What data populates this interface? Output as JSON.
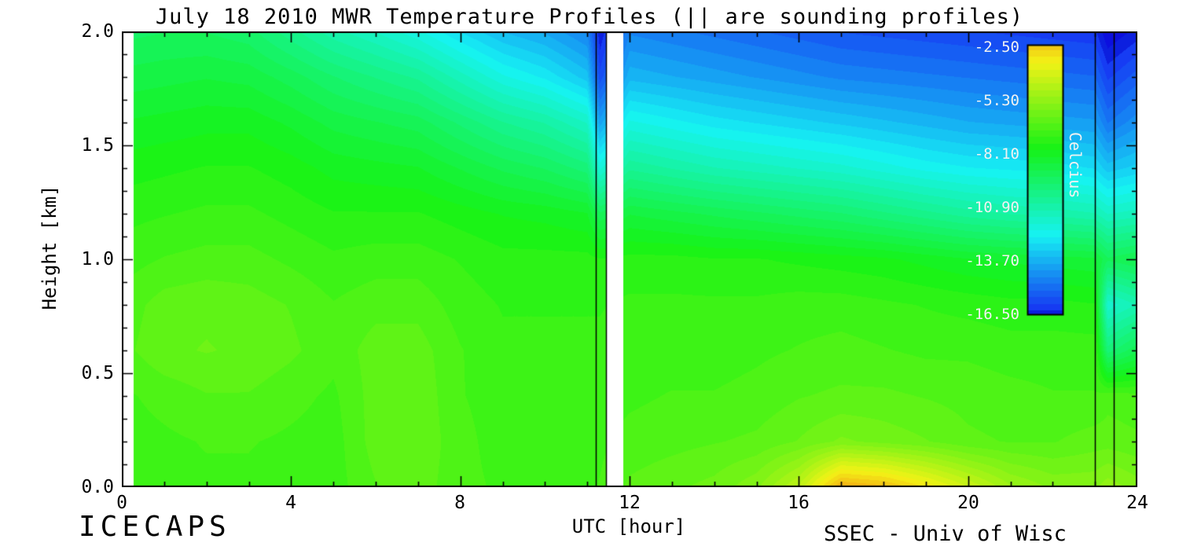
{
  "footer": {
    "left": "ICECAPS",
    "right": "SSEC - Univ of Wisc"
  },
  "chart_data": {
    "type": "heatmap",
    "title": "July 18 2010 MWR Temperature Profiles (|| are sounding profiles)",
    "xlabel": "UTC [hour]",
    "ylabel": "Height [km]",
    "units": "Celcius",
    "xlim": [
      0,
      24
    ],
    "ylim": [
      0.0,
      2.0
    ],
    "x_tick_values": [
      0,
      4,
      8,
      12,
      16,
      20,
      24
    ],
    "x_tick_labels": [
      "0",
      "4",
      "8",
      "12",
      "16",
      "20",
      "24"
    ],
    "x_minor_step": 1,
    "y_tick_values": [
      0.0,
      0.5,
      1.0,
      1.5,
      2.0
    ],
    "y_tick_labels": [
      "2.0",
      "1.5",
      "1.0",
      "0.5",
      "0.0"
    ],
    "y_minor_step": 0.1,
    "colorbar": {
      "label": "Celcius",
      "position": "inside-right",
      "tick_values": [
        -2.5,
        -5.3,
        -8.1,
        -10.9,
        -13.7,
        -16.5
      ],
      "tick_labels": [
        "-2.50",
        "-5.30",
        "-8.10",
        "-10.90",
        "-13.70",
        "-16.50"
      ],
      "top_color": "#ff8800",
      "bottom_color": "#2211cc"
    },
    "sounding_profiles_utc": [
      [
        11.2,
        11.45
      ],
      [
        23.0,
        23.45
      ]
    ],
    "data_gaps_utc": [
      [
        11.45,
        11.85
      ]
    ],
    "data_start_utc": 0.28,
    "contour_step_c": 0.35,
    "grid": {
      "x_hours": [
        0,
        1,
        2,
        3,
        4,
        5,
        6,
        7,
        8,
        9,
        10,
        11,
        11.3,
        12,
        13,
        14,
        15,
        16,
        17,
        18,
        19,
        20,
        21,
        22,
        23,
        23.3,
        24
      ],
      "y_km": [
        0.0,
        0.2,
        0.4,
        0.6,
        0.8,
        1.0,
        1.2,
        1.4,
        1.6,
        1.8,
        2.0
      ],
      "temps_c": [
        [
          -7.0,
          -6.9,
          -6.9,
          -6.9,
          -7.0,
          -7.0,
          -6.5,
          -6.3,
          -6.7,
          -6.9,
          -6.9,
          -6.9,
          -6.8,
          -6.4,
          -6.2,
          -6.0,
          -5.5,
          -4.3,
          -1.8,
          -2.1,
          -3.0,
          -4.0,
          -5.0,
          -5.5,
          -5.5,
          -5.2,
          -5.6
        ],
        [
          -7.0,
          -6.9,
          -6.8,
          -6.8,
          -6.9,
          -7.0,
          -6.3,
          -6.2,
          -6.7,
          -7.0,
          -7.0,
          -7.0,
          -6.9,
          -6.7,
          -6.6,
          -6.5,
          -6.4,
          -6.1,
          -5.7,
          -5.9,
          -6.1,
          -6.4,
          -6.5,
          -6.5,
          -6.3,
          -6.3,
          -6.4
        ],
        [
          -6.9,
          -6.7,
          -6.5,
          -6.5,
          -6.7,
          -6.9,
          -6.3,
          -6.2,
          -6.8,
          -7.0,
          -7.0,
          -7.0,
          -7.0,
          -6.9,
          -6.8,
          -6.8,
          -6.7,
          -6.5,
          -6.4,
          -6.4,
          -6.5,
          -6.6,
          -6.7,
          -6.8,
          -6.8,
          -6.6,
          -6.7
        ],
        [
          -6.6,
          -6.2,
          -6.1,
          -6.2,
          -6.4,
          -6.7,
          -6.3,
          -6.3,
          -6.8,
          -7.1,
          -7.1,
          -7.1,
          -7.1,
          -7.0,
          -7.0,
          -7.0,
          -6.9,
          -6.8,
          -6.7,
          -6.8,
          -6.9,
          -6.9,
          -7.0,
          -7.0,
          -7.0,
          -9.8,
          -9.0
        ],
        [
          -6.7,
          -6.3,
          -6.2,
          -6.3,
          -6.5,
          -6.8,
          -6.6,
          -6.6,
          -7.0,
          -7.2,
          -7.2,
          -7.2,
          -7.2,
          -7.1,
          -7.1,
          -7.1,
          -7.1,
          -7.0,
          -7.0,
          -7.1,
          -7.2,
          -7.3,
          -7.4,
          -7.4,
          -7.5,
          -11.6,
          -11.0
        ],
        [
          -7.0,
          -6.8,
          -6.7,
          -6.7,
          -6.9,
          -7.1,
          -7.0,
          -7.0,
          -7.2,
          -7.4,
          -7.4,
          -7.4,
          -7.5,
          -7.4,
          -7.4,
          -7.5,
          -7.5,
          -7.6,
          -7.7,
          -7.8,
          -8.0,
          -8.2,
          -8.3,
          -8.4,
          -8.5,
          -9.2,
          -8.9
        ],
        [
          -7.3,
          -7.2,
          -7.1,
          -7.1,
          -7.3,
          -7.5,
          -7.5,
          -7.5,
          -7.7,
          -7.9,
          -8.0,
          -8.2,
          -9.2,
          -8.6,
          -8.8,
          -9.0,
          -9.2,
          -9.4,
          -9.6,
          -9.9,
          -10.2,
          -10.5,
          -10.7,
          -10.8,
          -11.0,
          -11.4,
          -11.2
        ],
        [
          -7.7,
          -7.6,
          -7.5,
          -7.5,
          -7.7,
          -8.0,
          -8.1,
          -8.2,
          -8.6,
          -9.0,
          -9.3,
          -9.8,
          -11.8,
          -10.4,
          -10.7,
          -11.0,
          -11.2,
          -11.4,
          -11.6,
          -11.9,
          -12.2,
          -12.4,
          -12.5,
          -12.6,
          -12.8,
          -13.3,
          -13.0
        ],
        [
          -8.2,
          -8.1,
          -8.0,
          -8.0,
          -8.3,
          -8.7,
          -8.9,
          -9.1,
          -9.7,
          -10.3,
          -10.7,
          -11.4,
          -14.0,
          -12.0,
          -12.3,
          -12.6,
          -12.8,
          -13.0,
          -13.2,
          -13.4,
          -13.6,
          -13.8,
          -13.9,
          -14.0,
          -14.1,
          -14.9,
          -14.3
        ],
        [
          -8.8,
          -8.7,
          -8.6,
          -8.7,
          -9.1,
          -9.6,
          -10.0,
          -10.4,
          -11.2,
          -12.0,
          -12.5,
          -13.3,
          -15.8,
          -13.6,
          -13.8,
          -14.0,
          -14.2,
          -14.4,
          -14.6,
          -14.7,
          -14.8,
          -14.9,
          -15.0,
          -15.1,
          -15.2,
          -16.0,
          -15.4
        ],
        [
          -9.4,
          -9.3,
          -9.3,
          -9.5,
          -10.2,
          -10.9,
          -11.4,
          -12.0,
          -12.8,
          -13.5,
          -13.9,
          -14.6,
          -16.6,
          -14.6,
          -14.8,
          -15.0,
          -15.2,
          -15.4,
          -15.6,
          -15.7,
          -15.8,
          -15.9,
          -16.0,
          -16.1,
          -16.2,
          -17.0,
          -16.5
        ]
      ]
    }
  }
}
